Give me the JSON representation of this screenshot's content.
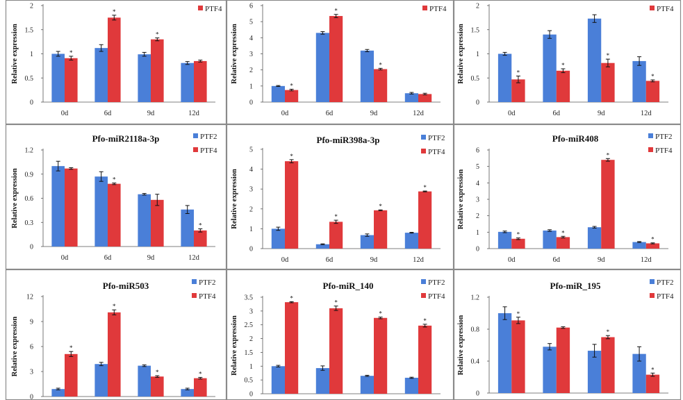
{
  "figure": {
    "series_names": [
      "PTF2",
      "PTF4"
    ],
    "colors": {
      "PTF2": "#4a7fd8",
      "PTF4": "#e0393b",
      "error_bar": "#111111",
      "panel_border": "#8a8a8a"
    },
    "ylabel": "Relative expression"
  },
  "chart_data": [
    {
      "type": "bar",
      "title": "",
      "ylabel": "Relative expression",
      "legend": [
        "PTF4"
      ],
      "categories": [
        "0d",
        "6d",
        "9d",
        "12d"
      ],
      "series": [
        {
          "name": "PTF2",
          "values": [
            1.0,
            1.12,
            0.99,
            0.81
          ],
          "errors": [
            0.05,
            0.07,
            0.04,
            0.03
          ]
        },
        {
          "name": "PTF4",
          "values": [
            0.91,
            1.75,
            1.3,
            0.85
          ],
          "errors": [
            0.04,
            0.05,
            0.03,
            0.02
          ]
        }
      ],
      "stars": [
        true,
        true,
        true,
        false
      ],
      "ylim": [
        0,
        2
      ],
      "yticks": [
        "0",
        "0.5",
        "1",
        "1.5",
        "2"
      ]
    },
    {
      "type": "bar",
      "title": "",
      "ylabel": "Relative expression",
      "legend": [
        "PTF4"
      ],
      "categories": [
        "0d",
        "6d",
        "9d",
        "12d"
      ],
      "series": [
        {
          "name": "PTF2",
          "values": [
            1.0,
            4.3,
            3.2,
            0.55
          ],
          "errors": [
            0.03,
            0.08,
            0.07,
            0.05
          ]
        },
        {
          "name": "PTF4",
          "values": [
            0.75,
            5.35,
            2.05,
            0.5
          ],
          "errors": [
            0.05,
            0.1,
            0.05,
            0.05
          ]
        }
      ],
      "stars": [
        true,
        true,
        true,
        false
      ],
      "ylim": [
        0,
        6
      ],
      "yticks": [
        "0",
        "1",
        "2",
        "3",
        "4",
        "5",
        "6"
      ]
    },
    {
      "type": "bar",
      "title": "",
      "ylabel": "Relative expression",
      "legend": [
        "PTF4"
      ],
      "categories": [
        "0d",
        "6d",
        "9d",
        "12d"
      ],
      "series": [
        {
          "name": "PTF2",
          "values": [
            1.0,
            1.4,
            1.73,
            0.85
          ],
          "errors": [
            0.03,
            0.08,
            0.08,
            0.09
          ]
        },
        {
          "name": "PTF4",
          "values": [
            0.47,
            0.65,
            0.81,
            0.44
          ],
          "errors": [
            0.07,
            0.04,
            0.08,
            0.02
          ]
        }
      ],
      "stars": [
        true,
        true,
        true,
        true
      ],
      "ylim": [
        0,
        2
      ],
      "yticks": [
        "0",
        "0.5",
        "1",
        "1.5",
        "2"
      ]
    },
    {
      "type": "bar",
      "title": "Pfo-miR2118a-3p",
      "ylabel": "Relative expression",
      "legend": [
        "PTF2",
        "PTF4"
      ],
      "categories": [
        "0d",
        "6d",
        "9d",
        "12d"
      ],
      "series": [
        {
          "name": "PTF2",
          "values": [
            1.0,
            0.87,
            0.65,
            0.46
          ],
          "errors": [
            0.06,
            0.06,
            0.01,
            0.05
          ]
        },
        {
          "name": "PTF4",
          "values": [
            0.97,
            0.78,
            0.58,
            0.2
          ],
          "errors": [
            0.01,
            0.01,
            0.07,
            0.02
          ]
        }
      ],
      "stars": [
        false,
        true,
        false,
        true
      ],
      "ylim": [
        0,
        1.2
      ],
      "yticks": [
        "0",
        "0.3",
        "0.6",
        "0.9",
        "1.2"
      ]
    },
    {
      "type": "bar",
      "title": "Pfo-miR398a-3p",
      "ylabel": "Relative expression",
      "legend": [
        "PTF2",
        "PTF4"
      ],
      "categories": [
        "0d",
        "6d",
        "9d",
        "12d"
      ],
      "series": [
        {
          "name": "PTF2",
          "values": [
            1.0,
            0.22,
            0.68,
            0.8
          ],
          "errors": [
            0.08,
            0.02,
            0.06,
            0.02
          ]
        },
        {
          "name": "PTF4",
          "values": [
            4.4,
            1.35,
            1.93,
            2.88
          ],
          "errors": [
            0.08,
            0.08,
            0.02,
            0.02
          ]
        }
      ],
      "stars": [
        true,
        true,
        true,
        true
      ],
      "ylim": [
        0,
        5
      ],
      "yticks": [
        "0",
        "1",
        "2",
        "3",
        "4",
        "5"
      ]
    },
    {
      "type": "bar",
      "title": "Pfo-miR408",
      "ylabel": "Relative expression",
      "legend": [
        "PTF2",
        "PTF4"
      ],
      "categories": [
        "0d",
        "6d",
        "9d",
        "12d"
      ],
      "series": [
        {
          "name": "PTF2",
          "values": [
            1.02,
            1.1,
            1.3,
            0.4
          ],
          "errors": [
            0.05,
            0.05,
            0.05,
            0.03
          ]
        },
        {
          "name": "PTF4",
          "values": [
            0.6,
            0.7,
            5.4,
            0.32
          ],
          "errors": [
            0.05,
            0.05,
            0.08,
            0.03
          ]
        }
      ],
      "stars": [
        true,
        true,
        true,
        true
      ],
      "ylim": [
        0,
        6
      ],
      "yticks": [
        "0",
        "1",
        "2",
        "3",
        "4",
        "5",
        "6"
      ]
    },
    {
      "type": "bar",
      "title": "Pfo-miR503",
      "ylabel": "Relative expression",
      "legend": [
        "PTF2",
        "PTF4"
      ],
      "categories": [
        "",
        "",
        "",
        ""
      ],
      "series": [
        {
          "name": "PTF2",
          "values": [
            0.9,
            3.9,
            3.7,
            0.9
          ],
          "errors": [
            0.1,
            0.2,
            0.1,
            0.1
          ]
        },
        {
          "name": "PTF4",
          "values": [
            5.1,
            10.1,
            2.4,
            2.2
          ],
          "errors": [
            0.3,
            0.3,
            0.1,
            0.1
          ]
        }
      ],
      "stars": [
        true,
        true,
        true,
        true
      ],
      "ylim": [
        0,
        12
      ],
      "yticks": [
        "0",
        "3",
        "6",
        "9",
        "12"
      ]
    },
    {
      "type": "bar",
      "title": "Pfo-miR_140",
      "ylabel": "Relative expression",
      "legend": [
        "PTF2",
        "PTF4"
      ],
      "categories": [
        "",
        "",
        "",
        ""
      ],
      "series": [
        {
          "name": "PTF2",
          "values": [
            1.0,
            0.93,
            0.65,
            0.58
          ],
          "errors": [
            0.03,
            0.08,
            0.02,
            0.02
          ]
        },
        {
          "name": "PTF4",
          "values": [
            3.32,
            3.1,
            2.75,
            2.47
          ],
          "errors": [
            0.02,
            0.08,
            0.03,
            0.05
          ]
        }
      ],
      "stars": [
        true,
        true,
        true,
        true
      ],
      "ylim": [
        0,
        3.5
      ],
      "yticks": [
        "0",
        "0.5",
        "1",
        "1.5",
        "2",
        "2.5",
        "3",
        "3.5"
      ]
    },
    {
      "type": "bar",
      "title": "Pfo-miR_195",
      "ylabel": "Relative expression",
      "legend": [
        "PTF2",
        "PTF4"
      ],
      "categories": [
        "",
        "",
        "",
        ""
      ],
      "series": [
        {
          "name": "PTF2",
          "values": [
            1.0,
            0.58,
            0.53,
            0.49
          ],
          "errors": [
            0.08,
            0.04,
            0.08,
            0.09
          ]
        },
        {
          "name": "PTF4",
          "values": [
            0.91,
            0.82,
            0.7,
            0.23
          ],
          "errors": [
            0.04,
            0.01,
            0.02,
            0.02
          ]
        }
      ],
      "stars": [
        true,
        false,
        true,
        true
      ],
      "ylim": [
        0,
        1.2
      ],
      "yticks": [
        "0",
        "0.4",
        "0.8",
        "1.2"
      ]
    }
  ]
}
